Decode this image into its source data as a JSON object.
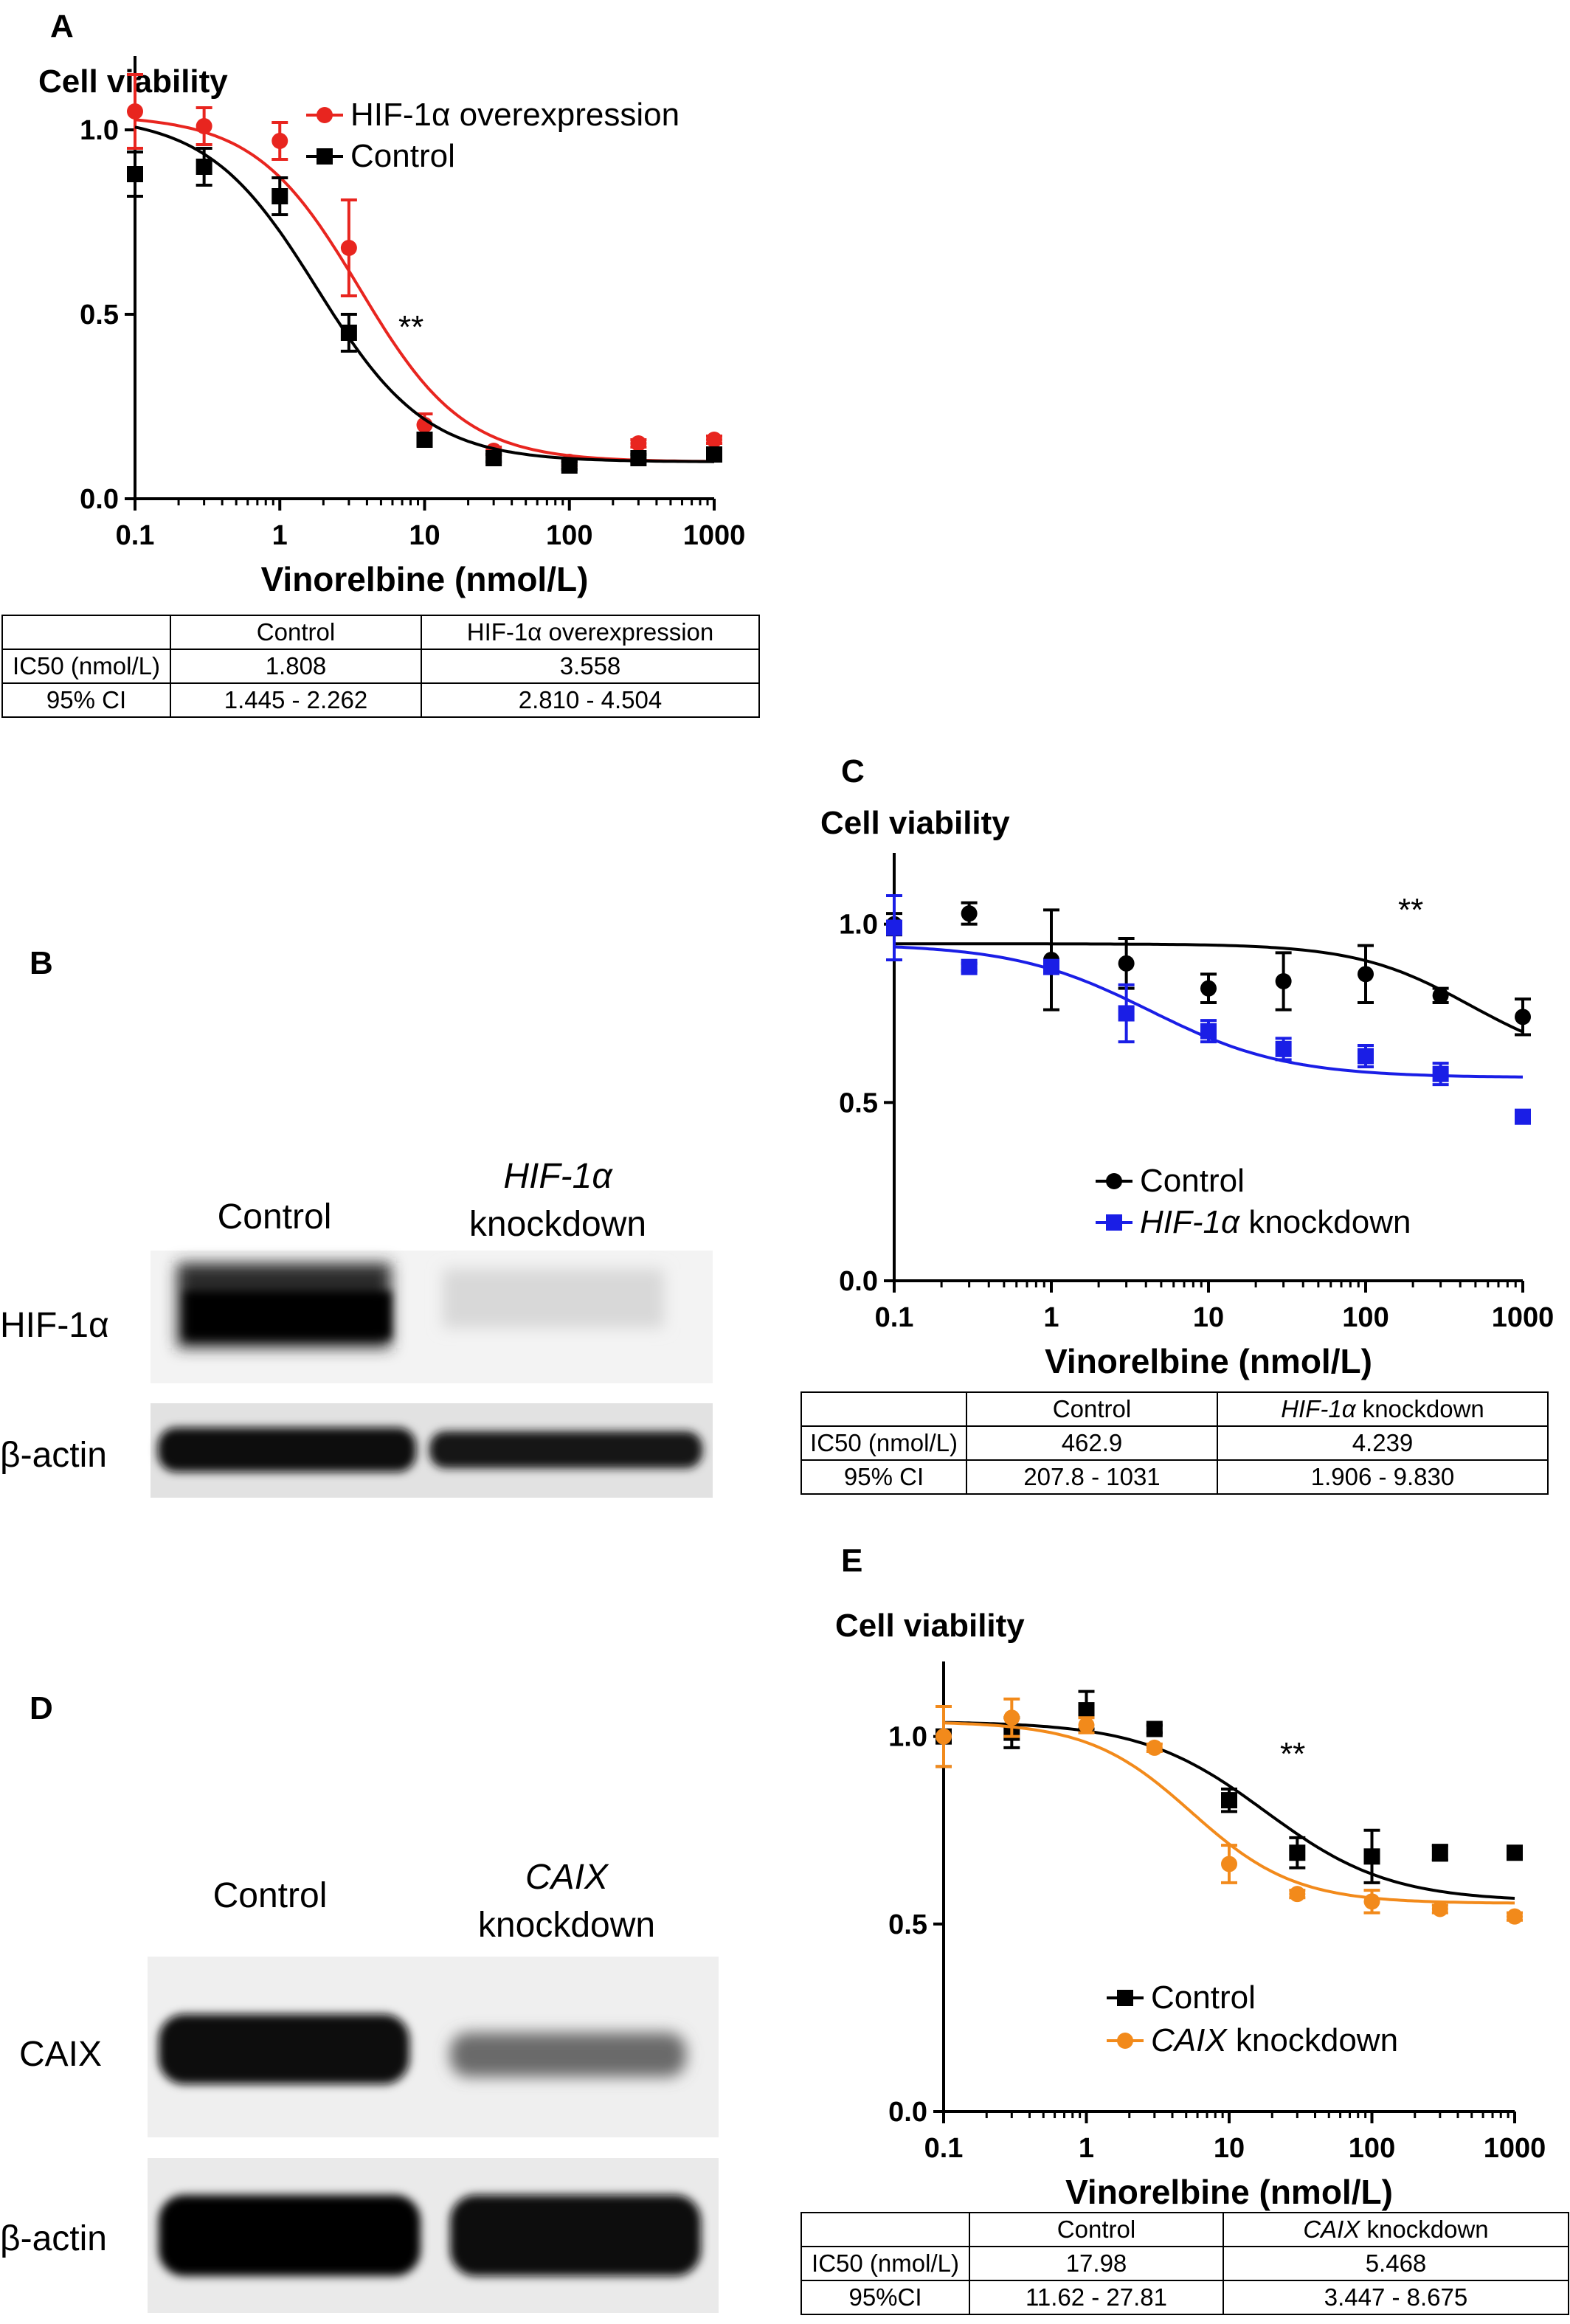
{
  "panels": {
    "A": {
      "letter": "A"
    },
    "B": {
      "letter": "B",
      "lane1": "Control",
      "lane2_gene": "HIF-1α",
      "lane2_label": "knockdown",
      "row1": "HIF-1α",
      "row2": "β-actin"
    },
    "C": {
      "letter": "C"
    },
    "D": {
      "letter": "D",
      "lane1": "Control",
      "lane2_gene": "CAIX",
      "lane2_label": "knockdown",
      "row1": "CAIX",
      "row2": "β-actin"
    },
    "E": {
      "letter": "E"
    }
  },
  "tables": {
    "A": {
      "head": [
        "",
        "Control",
        "HIF-1α overexpression"
      ],
      "rows": [
        [
          "IC50 (nmol/L)",
          "1.808",
          "3.558"
        ],
        [
          "95% CI",
          "1.445 - 2.262",
          "2.810 - 4.504"
        ]
      ]
    },
    "C": {
      "head": [
        "",
        "Control",
        "HIF-1α",
        "knockdown"
      ],
      "rows": [
        [
          "IC50 (nmol/L)",
          "462.9",
          "4.239"
        ],
        [
          "95% CI",
          "207.8 - 1031",
          "1.906 - 9.830"
        ]
      ]
    },
    "E": {
      "head": [
        "",
        "Control",
        "CAIX",
        "knockdown"
      ],
      "rows": [
        [
          "IC50 (nmol/L)",
          "17.98",
          "5.468"
        ],
        [
          "95%CI",
          "11.62 - 27.81",
          "3.447 - 8.675"
        ]
      ]
    }
  },
  "chart_data": [
    {
      "id": "A",
      "type": "scatter",
      "xscale": "log",
      "title": "Cell viability",
      "xlabel": "Vinorelbine (nmol/L)",
      "ylabel": "",
      "xlim": [
        0.1,
        1000
      ],
      "ylim": [
        0,
        1.2
      ],
      "xticks": [
        "0.1",
        "1",
        "10",
        "100",
        "1000"
      ],
      "yticks": [
        "0.0",
        "0.5",
        "1.0"
      ],
      "annotation": "**",
      "legend_position": "top-right",
      "series": [
        {
          "name": "HIF-1α overexpression",
          "color": "#e8251f",
          "marker": "circle",
          "x": [
            0.1,
            0.3,
            1,
            3,
            10,
            30,
            100,
            300,
            1000
          ],
          "y": [
            1.05,
            1.01,
            0.97,
            0.68,
            0.2,
            0.13,
            0.1,
            0.15,
            0.16
          ],
          "err": [
            0.1,
            0.05,
            0.05,
            0.13,
            0.03,
            0.01,
            0.01,
            0.01,
            0.01
          ],
          "fit": {
            "top": 1.04,
            "bottom": 0.1,
            "ic50": 3.558,
            "hill": 1.2
          }
        },
        {
          "name": "Control",
          "color": "#000000",
          "marker": "square",
          "x": [
            0.1,
            0.3,
            1,
            3,
            10,
            30,
            100,
            300,
            1000
          ],
          "y": [
            0.88,
            0.9,
            0.82,
            0.45,
            0.16,
            0.11,
            0.09,
            0.11,
            0.12
          ],
          "err": [
            0.06,
            0.05,
            0.05,
            0.05,
            0.01,
            0.01,
            0.01,
            0.01,
            0.01
          ],
          "fit": {
            "top": 1.04,
            "bottom": 0.1,
            "ic50": 1.808,
            "hill": 1.15
          }
        }
      ]
    },
    {
      "id": "C",
      "type": "scatter",
      "xscale": "log",
      "title": "Cell viability",
      "xlabel": "Vinorelbine (nmol/L)",
      "ylabel": "",
      "xlim": [
        0.1,
        1000
      ],
      "ylim": [
        0,
        1.2
      ],
      "xticks": [
        "0.1",
        "1",
        "10",
        "100",
        "1000"
      ],
      "yticks": [
        "0.0",
        "0.5",
        "1.0"
      ],
      "annotation": "**",
      "legend_position": "bottom-right",
      "series": [
        {
          "name": "Control",
          "color": "#000000",
          "marker": "circle",
          "x": [
            0.1,
            0.3,
            1,
            3,
            10,
            30,
            100,
            300,
            1000
          ],
          "y": [
            1.0,
            1.03,
            0.9,
            0.89,
            0.82,
            0.84,
            0.86,
            0.8,
            0.74
          ],
          "err": [
            0.03,
            0.03,
            0.14,
            0.07,
            0.04,
            0.08,
            0.08,
            0.02,
            0.05
          ],
          "fit": {
            "top": 0.945,
            "bottom": 0.6,
            "ic50": 462.9,
            "hill": 1.2
          }
        },
        {
          "name": "HIF-1α knockdown",
          "color": "#1a1ee6",
          "marker": "square",
          "x": [
            0.1,
            0.3,
            1,
            3,
            10,
            30,
            100,
            300,
            1000
          ],
          "y": [
            0.99,
            0.88,
            0.88,
            0.75,
            0.7,
            0.65,
            0.63,
            0.58,
            0.46
          ],
          "err": [
            0.09,
            0.01,
            0.01,
            0.08,
            0.03,
            0.03,
            0.03,
            0.03,
            0.01
          ],
          "fit": {
            "top": 0.945,
            "bottom": 0.57,
            "ic50": 4.239,
            "hill": 1.0
          }
        }
      ]
    },
    {
      "id": "E",
      "type": "scatter",
      "xscale": "log",
      "title": "Cell viability",
      "xlabel": "Vinorelbine (nmol/L)",
      "ylabel": "",
      "xlim": [
        0.1,
        1000
      ],
      "ylim": [
        0,
        1.2
      ],
      "xticks": [
        "0.1",
        "1",
        "10",
        "100",
        "1000"
      ],
      "yticks": [
        "0.0",
        "0.5",
        "1.0"
      ],
      "annotation": "**",
      "legend_position": "bottom-right",
      "series": [
        {
          "name": "Control",
          "color": "#000000",
          "marker": "square",
          "x": [
            0.1,
            0.3,
            1,
            3,
            10,
            30,
            100,
            300,
            1000
          ],
          "y": [
            1.0,
            1.01,
            1.07,
            1.02,
            0.83,
            0.69,
            0.68,
            0.69,
            0.69
          ],
          "err": [
            0.08,
            0.04,
            0.05,
            0.01,
            0.03,
            0.04,
            0.07,
            0.02,
            0.01
          ],
          "fit": {
            "top": 1.04,
            "bottom": 0.56,
            "ic50": 17.98,
            "hill": 1.0
          }
        },
        {
          "name": "CAIX knockdown",
          "color": "#f28a1b",
          "marker": "circle",
          "x": [
            0.1,
            0.3,
            1,
            3,
            10,
            30,
            100,
            300,
            1000
          ],
          "y": [
            1.0,
            1.05,
            1.03,
            0.97,
            0.66,
            0.58,
            0.56,
            0.54,
            0.52
          ],
          "err": [
            0.08,
            0.05,
            0.02,
            0.01,
            0.05,
            0.01,
            0.03,
            0.01,
            0.01
          ],
          "fit": {
            "top": 1.04,
            "bottom": 0.555,
            "ic50": 5.468,
            "hill": 1.2
          }
        }
      ]
    }
  ]
}
